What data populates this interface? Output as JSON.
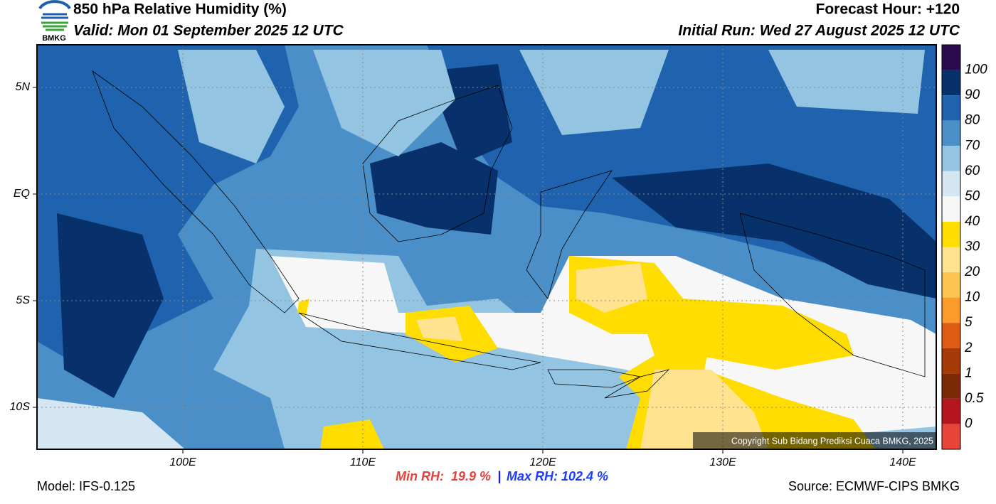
{
  "header": {
    "title": "850 hPa Relative Humidity (%)",
    "valid": "Valid: Mon 01 September 2025 12 UTC",
    "forecast_hour": "Forecast Hour: +120",
    "initial_run": "Initial Run: Wed 27 August 2025 12 UTC",
    "logo": "BMKG"
  },
  "map": {
    "lat_labels": [
      "5N",
      "EQ",
      "5S",
      "10S"
    ],
    "lon_labels": [
      "100E",
      "110E",
      "120E",
      "130E",
      "140E"
    ],
    "copyright": "Copyright Sub Bidang Prediksi Cuaca BMKG, 2025"
  },
  "colorbar": {
    "colors": [
      "#2d0a4e",
      "#08306b",
      "#1f63ae",
      "#4a8fc8",
      "#93c4e2",
      "#d3e6f2",
      "#f7f7f7",
      "#ffdd00",
      "#ffe38f",
      "#fdc451",
      "#fc9a2a",
      "#df5a12",
      "#a63a06",
      "#7c2a06",
      "#b5151f",
      "#e8453a"
    ],
    "labels": [
      "100",
      "90",
      "80",
      "70",
      "60",
      "50",
      "40",
      "30",
      "20",
      "10",
      "5",
      "2",
      "1",
      "0.5",
      "0"
    ]
  },
  "footer": {
    "model": "Model: IFS-0.125",
    "min_rh": "Min RH:  19.9 %",
    "separator": "|",
    "max_rh": "Max RH: 102.4 %",
    "source": "Source: ECMWF-CIPS BMKG"
  }
}
